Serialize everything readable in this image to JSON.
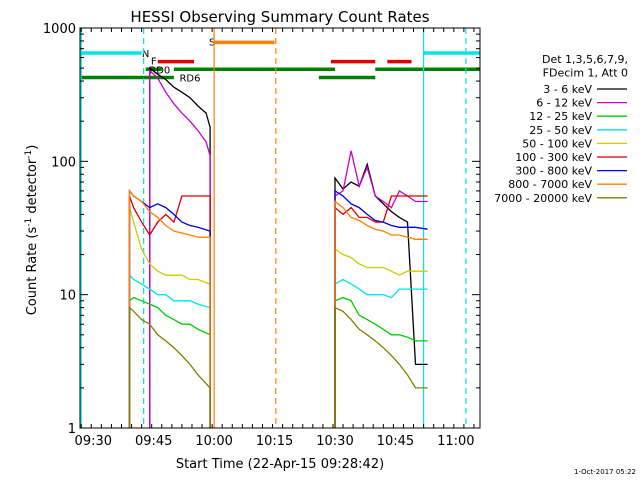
{
  "chart_data": {
    "type": "line",
    "title": "HESSI Observing Summary Count Rates",
    "xlabel": "Start Time (22-Apr-15 09:28:42)",
    "ylabel": "Count Rate (s⁻¹ detector⁻¹)",
    "ylabel_parts": [
      "Count Rate (s",
      "-1",
      " detector",
      "-1",
      ")"
    ],
    "yscale": "log",
    "ylim": [
      1,
      1000
    ],
    "xlim_minutes": [
      -3.3,
      96
    ],
    "x_ticks": [
      "09:30",
      "09:45",
      "10:00",
      "10:15",
      "10:30",
      "10:45",
      "11:00"
    ],
    "x_tick_minutes": [
      0,
      15,
      30,
      45,
      60,
      75,
      90
    ],
    "y_ticks": [
      "1",
      "10",
      "100",
      "1000"
    ],
    "y_tick_values": [
      1,
      10,
      100,
      1000
    ],
    "legend_header": [
      "Det 1,3,5,6,7,9,",
      "FDecim 1, Att 0"
    ],
    "timestamp": "1-Oct-2017 05:22",
    "series": [
      {
        "name": "3 - 6 keV",
        "color": "#000000",
        "x": [
          -3,
          13,
          14,
          16,
          18,
          20,
          22,
          24,
          26,
          28,
          29,
          60,
          62,
          64,
          66,
          68,
          70,
          72,
          74,
          76,
          78,
          80,
          83
        ],
        "y": [
          null,
          null,
          500,
          450,
          410,
          360,
          330,
          300,
          260,
          230,
          180,
          75,
          62,
          70,
          65,
          95,
          55,
          48,
          42,
          38,
          35,
          3,
          3
        ]
      },
      {
        "name": "6 - 12 keV",
        "color": "#cc00cc",
        "x": [
          14,
          16,
          18,
          20,
          22,
          24,
          26,
          28,
          29,
          60,
          62,
          64,
          66,
          68,
          70,
          72,
          74,
          76,
          78,
          80,
          83
        ],
        "y": [
          480,
          420,
          330,
          270,
          230,
          200,
          170,
          140,
          110,
          55,
          60,
          120,
          65,
          90,
          55,
          50,
          45,
          60,
          55,
          50,
          50
        ]
      },
      {
        "name": "12 - 25 keV",
        "color": "#00cc00",
        "x": [
          9,
          10,
          12,
          14,
          16,
          18,
          20,
          22,
          24,
          26,
          29,
          60,
          62,
          64,
          66,
          68,
          70,
          72,
          74,
          76,
          78,
          80,
          83
        ],
        "y": [
          9,
          9.5,
          9,
          8.5,
          8,
          7,
          6.5,
          6,
          6,
          5.5,
          5,
          9,
          9.5,
          9,
          7,
          6.5,
          6,
          5.5,
          5,
          5,
          4.8,
          4.5,
          4.5
        ]
      },
      {
        "name": "25 - 50 keV",
        "color": "#00e5e5",
        "x": [
          9,
          10,
          12,
          14,
          16,
          18,
          20,
          22,
          24,
          26,
          29,
          60,
          62,
          64,
          66,
          68,
          70,
          72,
          74,
          76,
          78,
          80,
          83
        ],
        "y": [
          14,
          13,
          12,
          11,
          10,
          10,
          9,
          9,
          9,
          8.5,
          8,
          12,
          13,
          12,
          11,
          10,
          10,
          10,
          9.5,
          11,
          11,
          11,
          11
        ]
      },
      {
        "name": "50 - 100 keV",
        "color": "#cccc00",
        "x": [
          9,
          10,
          12,
          14,
          16,
          18,
          20,
          22,
          24,
          26,
          29,
          60,
          62,
          64,
          66,
          68,
          70,
          72,
          74,
          76,
          78,
          80,
          83
        ],
        "y": [
          45,
          35,
          22,
          17,
          15,
          14,
          14,
          14,
          13,
          13,
          12,
          22,
          20,
          19,
          17,
          16,
          16,
          16,
          15,
          14,
          15,
          15,
          15
        ]
      },
      {
        "name": "100 - 300 keV",
        "color": "#dd0000",
        "x": [
          9,
          10,
          12,
          14,
          16,
          18,
          20,
          22,
          24,
          26,
          29,
          60,
          62,
          64,
          66,
          68,
          70,
          72,
          74,
          76,
          78,
          80,
          83
        ],
        "y": [
          55,
          45,
          35,
          28,
          35,
          40,
          35,
          55,
          55,
          55,
          55,
          45,
          40,
          45,
          38,
          38,
          35,
          35,
          55,
          55,
          55,
          55,
          55
        ]
      },
      {
        "name": "300 - 800 keV",
        "color": "#0000dd",
        "x": [
          9,
          10,
          12,
          14,
          16,
          18,
          20,
          22,
          24,
          26,
          29,
          60,
          62,
          64,
          66,
          68,
          70,
          72,
          74,
          76,
          78,
          80,
          83
        ],
        "y": [
          60,
          55,
          50,
          45,
          48,
          45,
          40,
          35,
          33,
          32,
          30,
          60,
          55,
          48,
          45,
          40,
          36,
          35,
          33,
          32,
          32,
          32,
          31
        ]
      },
      {
        "name": "800 - 7000 keV",
        "color": "#ff8000",
        "x": [
          9,
          10,
          12,
          14,
          16,
          18,
          20,
          22,
          24,
          26,
          29,
          60,
          62,
          64,
          66,
          68,
          70,
          72,
          74,
          76,
          78,
          80,
          83
        ],
        "y": [
          60,
          55,
          50,
          42,
          38,
          33,
          30,
          29,
          28,
          27,
          27,
          50,
          45,
          38,
          36,
          33,
          31,
          30,
          28,
          28,
          27,
          26,
          26
        ]
      },
      {
        "name": "7000 - 20000 keV",
        "color": "#808000",
        "x": [
          9,
          10,
          12,
          14,
          16,
          18,
          20,
          22,
          24,
          26,
          29,
          60,
          62,
          64,
          66,
          68,
          70,
          72,
          74,
          76,
          78,
          80,
          83
        ],
        "y": [
          8,
          7.5,
          6.5,
          6,
          5,
          4.5,
          4,
          3.5,
          3,
          2.5,
          2,
          8,
          7.5,
          6.5,
          5.5,
          5,
          4.5,
          4,
          3.5,
          3,
          2.5,
          2,
          2
        ]
      }
    ],
    "flag_bars": [
      {
        "label": "N",
        "color": "#00e5e5",
        "level": 650,
        "segments": [
          [
            -3,
            12
          ],
          [
            82,
            96
          ]
        ]
      },
      {
        "label": "F",
        "color": "#dd0000",
        "level": 560,
        "segments": [
          [
            16,
            25
          ],
          [
            59,
            70
          ],
          [
            73,
            79
          ]
        ]
      },
      {
        "label": "S",
        "color": "#ff8000",
        "level": 780,
        "segments": [
          [
            30,
            45
          ]
        ]
      },
      {
        "label": "RD0",
        "color": "#008000",
        "level": 490,
        "segments": [
          [
            13,
            17
          ],
          [
            20,
            60
          ],
          [
            70,
            96
          ]
        ]
      },
      {
        "label": "RD6",
        "color": "#008000",
        "level": 425,
        "segments": [
          [
            -3,
            20
          ],
          [
            56,
            70
          ]
        ]
      }
    ],
    "vertical_lines": [
      {
        "minute": -3.0,
        "color": "#00e5e5",
        "dashed": false
      },
      {
        "minute": 12.5,
        "color": "#00e5e5",
        "dashed": true
      },
      {
        "minute": 30.0,
        "color": "#ff8000",
        "dashed": false
      },
      {
        "minute": 45.3,
        "color": "#ff8000",
        "dashed": true
      },
      {
        "minute": 82.0,
        "color": "#00e5e5",
        "dashed": false
      },
      {
        "minute": 92.5,
        "color": "#00e5e5",
        "dashed": true
      }
    ]
  }
}
